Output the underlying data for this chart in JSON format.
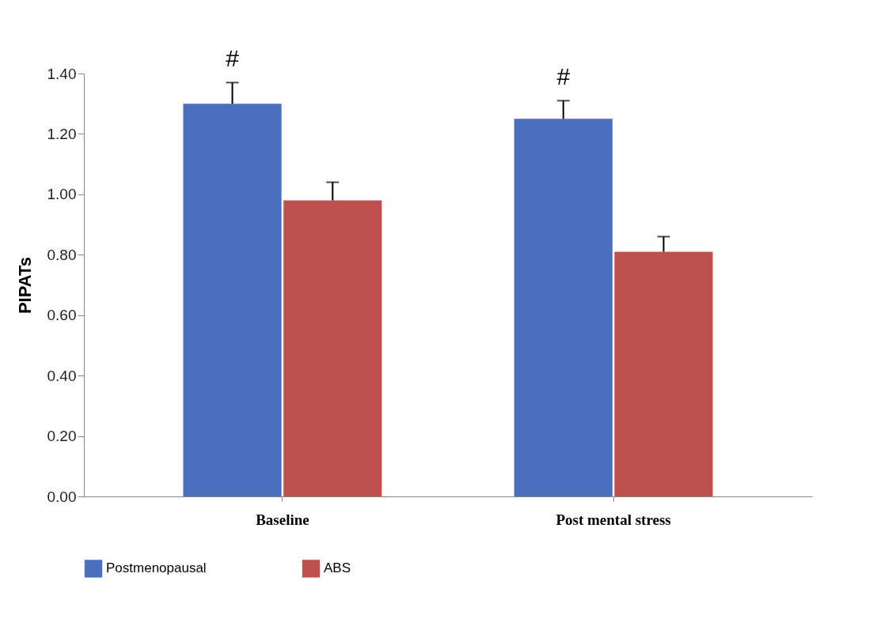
{
  "chart_data": {
    "type": "bar",
    "ylabel": "PIPATs",
    "categories": [
      "Baseline",
      "Post mental stress"
    ],
    "series": [
      {
        "name": "Postmenopausal",
        "color": "#4a6fbf",
        "values": [
          1.3,
          1.25
        ],
        "errors": [
          [
            1.3,
            1.37
          ],
          [
            1.25,
            1.31
          ]
        ]
      },
      {
        "name": "ABS",
        "color": "#c0504d",
        "values": [
          0.98,
          0.81
        ],
        "errors": [
          [
            0.98,
            1.04
          ],
          [
            0.81,
            0.86
          ]
        ]
      }
    ],
    "ylim": [
      0,
      1.4
    ],
    "yticks": [
      {
        "value": 0,
        "label": "0.00"
      },
      {
        "value": 0.2,
        "label": "0.20"
      },
      {
        "value": 0.4,
        "label": "0.40"
      },
      {
        "value": 0.6,
        "label": "0.60"
      },
      {
        "value": 0.8,
        "label": "0.80"
      },
      {
        "value": 1.0,
        "label": "1.00"
      },
      {
        "value": 1.2,
        "label": "1.20"
      },
      {
        "value": 1.4,
        "label": "1.40"
      }
    ],
    "annotations": [
      "#",
      "#"
    ],
    "grid": false,
    "legend": "bottom"
  }
}
